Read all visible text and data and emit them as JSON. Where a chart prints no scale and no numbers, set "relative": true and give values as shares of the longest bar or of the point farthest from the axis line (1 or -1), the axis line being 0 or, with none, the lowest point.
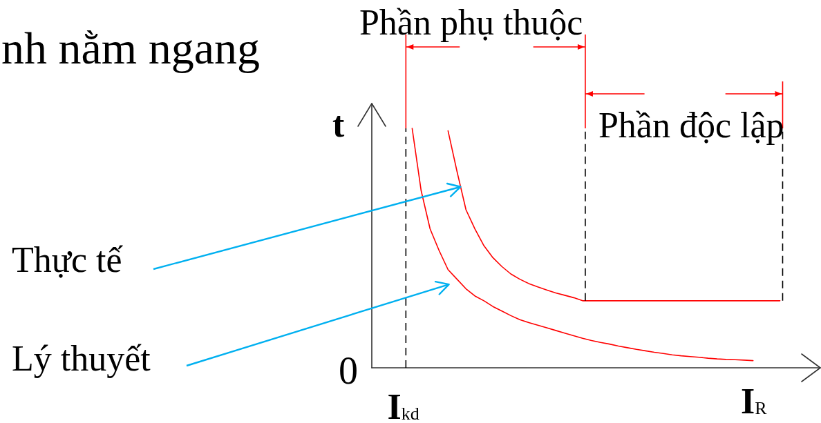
{
  "chart_data": {
    "type": "line",
    "relative": true,
    "xlabel": "I$_{R}$",
    "ylabel": "t",
    "categories": [
      null,
      null,
      null,
      null,
      null,
      null,
      null,
      null,
      null,
      null,
      null,
      null,
      null,
      null,
      null,
      null,
      null,
      null,
      null,
      null,
      null,
      null,
      null,
      null,
      null,
      null,
      null,
      null,
      null,
      null,
      null,
      null,
      null,
      null,
      null,
      null,
      null,
      null,
      null,
      null,
      null,
      null,
      null,
      null,
      null,
      null,
      null,
      null,
      null,
      null
    ],
    "series": [
      {
        "name": "Thực tế",
        "color": "#ff0000",
        "values": [
          null,
          null,
          null,
          null,
          null,
          null,
          null,
          null,
          0.99,
          0.82,
          0.66,
          0.58,
          0.51,
          0.46,
          0.423,
          0.392,
          0.37,
          0.352,
          0.338,
          0.325,
          0.313,
          0.303,
          0.293,
          0.28,
          0.28,
          0.28,
          0.28,
          0.28,
          0.28,
          0.28,
          0.28,
          0.28,
          0.28,
          0.28,
          0.28,
          0.28,
          0.28,
          0.28,
          0.28,
          0.28,
          0.28,
          0.28,
          0.28,
          0.28,
          0.28,
          0.28,
          null,
          null,
          null,
          null
        ]
      },
      {
        "name": "Lý thuyết",
        "color": "#ff0000",
        "values": [
          null,
          null,
          null,
          null,
          1,
          0.74,
          0.58,
          0.49,
          0.41,
          0.37,
          0.33,
          0.3,
          0.28,
          0.256,
          0.237,
          0.218,
          0.201,
          0.189,
          0.178,
          0.167,
          0.156,
          0.145,
          0.134,
          0.123,
          0.114,
          0.106,
          0.099,
          0.091,
          0.084,
          0.077,
          0.071,
          0.065,
          0.06,
          0.054,
          0.05,
          0.047,
          0.044,
          0.04,
          0.037,
          0.035,
          0.034,
          0.032,
          0.03,
          null,
          null,
          null,
          null,
          null,
          null,
          null
        ]
      }
    ],
    "annotations": [
      "nh nằm ngang",
      "0",
      "I$_{kd}$",
      "Phần phụ thuộc",
      "Phần độc lập"
    ],
    "grid": false,
    "marker": "none",
    "line_style": "solid"
  }
}
